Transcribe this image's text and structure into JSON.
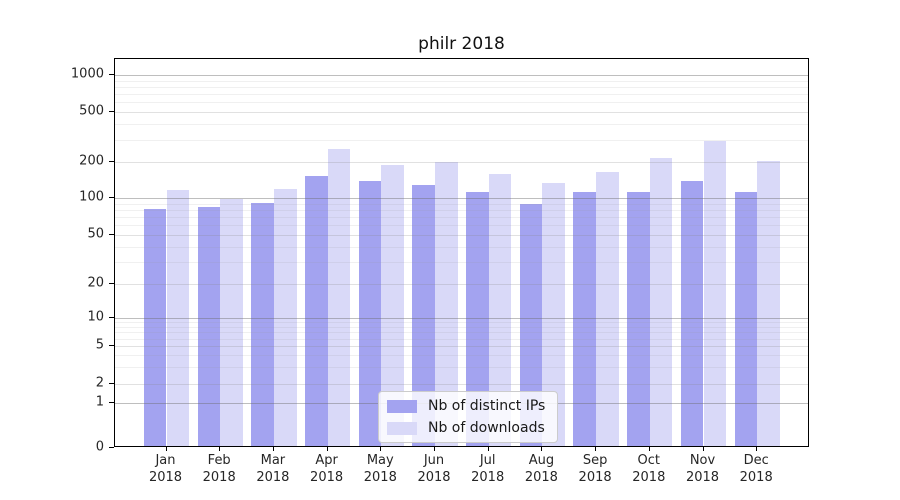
{
  "title": "philr 2018",
  "chart_data": {
    "type": "bar",
    "categories": [
      "Jan 2018",
      "Feb 2018",
      "Mar 2018",
      "Apr 2018",
      "May 2018",
      "Jun 2018",
      "Jul 2018",
      "Aug 2018",
      "Sep 2018",
      "Oct 2018",
      "Nov 2018",
      "Dec 2018"
    ],
    "series": [
      {
        "name": "Nb of distinct IPs",
        "color": "#a3a3f0",
        "values": [
          78,
          82,
          88,
          146,
          133,
          124,
          109,
          86,
          109,
          108,
          133,
          109
        ]
      },
      {
        "name": "Nb of downloads",
        "color": "#d9d9f8",
        "values": [
          113,
          95,
          114,
          245,
          181,
          193,
          152,
          128,
          158,
          205,
          282,
          195
        ]
      }
    ],
    "xlabel": "",
    "ylabel": "",
    "yscale": "symlog",
    "ylim": [
      0,
      1340
    ],
    "y_ticks": [
      0,
      1,
      2,
      5,
      10,
      20,
      50,
      100,
      200,
      500,
      1000
    ],
    "grid": "major and minor horizontal gridlines, drawn over bars",
    "legend_position": "lower center"
  },
  "axis_geometry": {
    "y_tick_anchors": [
      {
        "v": 0,
        "f": 1.0
      },
      {
        "v": 1,
        "f": 0.8835
      },
      {
        "v": 2,
        "f": 0.8347
      },
      {
        "v": 5,
        "f": 0.7378
      },
      {
        "v": 10,
        "f": 0.665
      },
      {
        "v": 20,
        "f": 0.5776
      },
      {
        "v": 50,
        "f": 0.4524
      },
      {
        "v": 100,
        "f": 0.3581
      },
      {
        "v": 200,
        "f": 0.264
      },
      {
        "v": 500,
        "f": 0.1355
      },
      {
        "v": 1000,
        "f": 0.0411
      }
    ],
    "minor_multipliers": [
      3,
      4,
      6,
      7,
      8,
      9
    ]
  },
  "colors": {
    "background": "#ffffff",
    "spine": "#000000",
    "tick_text": "#262626",
    "legend_border": "#cccccc"
  }
}
